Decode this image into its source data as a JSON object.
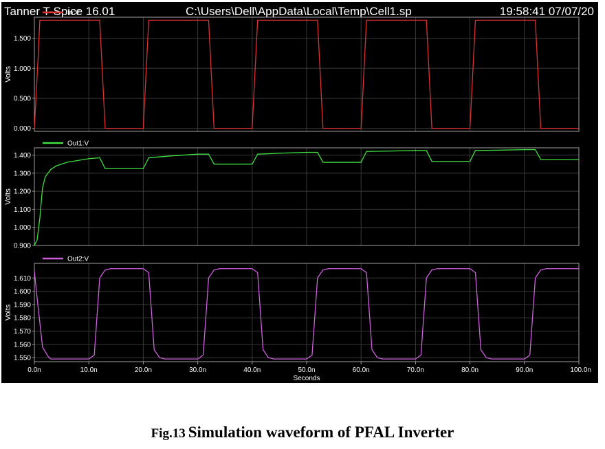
{
  "header": {
    "app_title": "Tanner T-Spice 16.01",
    "file_path": "C:\\Users\\Dell\\AppData\\Local\\Temp\\Cell1.sp",
    "timestamp": "19:58:41 07/07/20"
  },
  "caption": {
    "number": "Fig.13",
    "text": "Simulation waveform of PFAL Inverter"
  },
  "colors": {
    "background": "#000000",
    "plot_border": "#a0a0a0",
    "grid": "#3a3a3a",
    "text": "#ffffff",
    "in_v": "#e03030",
    "out1_v": "#40e040",
    "out2_v": "#d060e0"
  },
  "chart_data": [
    {
      "type": "line",
      "series": [
        {
          "name": "In:V",
          "color": "#e03030",
          "x": [
            0,
            0.7,
            1,
            12,
            13,
            20,
            21,
            32,
            33,
            40,
            41,
            52,
            53,
            60,
            61,
            72,
            73,
            80,
            81,
            92,
            93,
            100
          ],
          "y": [
            0,
            1.2,
            1.8,
            1.8,
            0,
            0,
            1.8,
            1.8,
            0,
            0,
            1.8,
            1.8,
            0,
            0,
            1.8,
            1.8,
            0,
            0,
            1.8,
            1.8,
            0,
            0
          ]
        }
      ],
      "xlim": [
        0,
        100
      ],
      "ylim": [
        -0.05,
        1.85
      ],
      "yticks": [
        0,
        0.5,
        1.0,
        1.5
      ],
      "ytick_labels": [
        "0.000",
        "0.500",
        "1.000",
        "1.500"
      ],
      "ylabel": "Volts",
      "grid": true,
      "legend": "top-left"
    },
    {
      "type": "line",
      "series": [
        {
          "name": "Out1:V",
          "color": "#40e040",
          "x": [
            0,
            0.5,
            1,
            1.5,
            2,
            3,
            4,
            6,
            8,
            10,
            12,
            13,
            15,
            18,
            20,
            21,
            25,
            30,
            32,
            33,
            35,
            38,
            40,
            41,
            45,
            50,
            52,
            53,
            55,
            58,
            60,
            61,
            65,
            70,
            72,
            73,
            75,
            78,
            80,
            81,
            85,
            90,
            92,
            93,
            95,
            100
          ],
          "y": [
            0.9,
            0.93,
            1.05,
            1.22,
            1.28,
            1.32,
            1.34,
            1.36,
            1.37,
            1.38,
            1.385,
            1.325,
            1.325,
            1.325,
            1.325,
            1.385,
            1.395,
            1.405,
            1.405,
            1.35,
            1.35,
            1.35,
            1.35,
            1.405,
            1.41,
            1.415,
            1.415,
            1.36,
            1.36,
            1.36,
            1.36,
            1.42,
            1.422,
            1.425,
            1.425,
            1.365,
            1.365,
            1.365,
            1.365,
            1.425,
            1.427,
            1.43,
            1.43,
            1.375,
            1.375,
            1.375
          ]
        }
      ],
      "xlim": [
        0,
        100
      ],
      "ylim": [
        0.9,
        1.44
      ],
      "yticks": [
        0.9,
        1.0,
        1.1,
        1.2,
        1.3,
        1.4
      ],
      "ytick_labels": [
        "0.900",
        "1.000",
        "1.100",
        "1.200",
        "1.300",
        "1.400"
      ],
      "ylabel": "Volts",
      "grid": true,
      "legend": "top-left"
    },
    {
      "type": "line",
      "series": [
        {
          "name": "Out2:V",
          "color": "#d060e0",
          "x": [
            0,
            0.5,
            1.5,
            2.5,
            3,
            5,
            10,
            11,
            12,
            13,
            14,
            20,
            21,
            22,
            23,
            24,
            30,
            31,
            32,
            33,
            34,
            40,
            41,
            42,
            43,
            44,
            50,
            51,
            52,
            53,
            54,
            60,
            61,
            62,
            63,
            64,
            70,
            71,
            72,
            73,
            74,
            80,
            81,
            82,
            83,
            84,
            90,
            91,
            92,
            93,
            94,
            100
          ],
          "y": [
            1.615,
            1.595,
            1.558,
            1.551,
            1.549,
            1.549,
            1.549,
            1.552,
            1.61,
            1.616,
            1.617,
            1.617,
            1.614,
            1.556,
            1.55,
            1.549,
            1.549,
            1.552,
            1.61,
            1.616,
            1.617,
            1.617,
            1.614,
            1.556,
            1.55,
            1.549,
            1.549,
            1.552,
            1.61,
            1.616,
            1.617,
            1.617,
            1.614,
            1.556,
            1.55,
            1.549,
            1.549,
            1.552,
            1.61,
            1.616,
            1.617,
            1.617,
            1.614,
            1.556,
            1.55,
            1.549,
            1.549,
            1.552,
            1.61,
            1.616,
            1.617,
            1.617
          ]
        }
      ],
      "xlim": [
        0,
        100
      ],
      "ylim": [
        1.547,
        1.621
      ],
      "yticks": [
        1.55,
        1.56,
        1.57,
        1.58,
        1.59,
        1.6,
        1.61
      ],
      "ytick_labels": [
        "1.550",
        "1.560",
        "1.570",
        "1.580",
        "1.590",
        "1.600",
        "1.610"
      ],
      "ylabel": "Volts",
      "grid": true,
      "legend": "top-left"
    }
  ],
  "x_axis": {
    "label": "Seconds",
    "ticks": [
      0,
      10,
      20,
      30,
      40,
      50,
      60,
      70,
      80,
      90,
      100
    ],
    "tick_labels": [
      "0.0n",
      "10.0n",
      "20.0n",
      "30.0n",
      "40.0n",
      "50.0n",
      "60.0n",
      "70.0n",
      "80.0n",
      "90.0n",
      "100.0n"
    ]
  }
}
